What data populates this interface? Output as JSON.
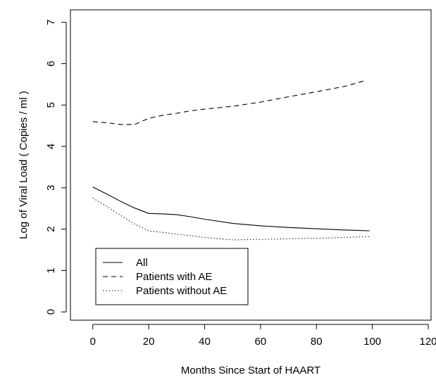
{
  "chart_data": {
    "type": "line",
    "title": "",
    "xlabel": "Months Since Start of HAART",
    "ylabel": "Log of Viral Load ( Copies / ml )",
    "xlim": [
      -8,
      121
    ],
    "ylim": [
      -0.2,
      7.3
    ],
    "xticks": [
      0,
      20,
      40,
      60,
      80,
      100,
      120
    ],
    "yticks": [
      0,
      1,
      2,
      3,
      4,
      5,
      6,
      7
    ],
    "grid": false,
    "legend_position": "bottom-left",
    "series": [
      {
        "name": "All",
        "linestyle": "solid",
        "color": "#000000",
        "x": [
          0,
          5,
          10,
          15,
          20,
          25,
          30,
          35,
          40,
          50,
          60,
          70,
          80,
          90,
          99
        ],
        "y": [
          3.02,
          2.85,
          2.67,
          2.51,
          2.38,
          2.37,
          2.35,
          2.3,
          2.24,
          2.14,
          2.08,
          2.04,
          2.01,
          1.98,
          1.96
        ]
      },
      {
        "name": "Patients with AE",
        "linestyle": "dashed",
        "color": "#000000",
        "x": [
          0,
          5,
          10,
          15,
          20,
          25,
          30,
          35,
          40,
          50,
          60,
          70,
          80,
          90,
          97
        ],
        "y": [
          4.6,
          4.57,
          4.53,
          4.53,
          4.68,
          4.75,
          4.8,
          4.86,
          4.9,
          4.97,
          5.07,
          5.2,
          5.32,
          5.45,
          5.58
        ]
      },
      {
        "name": "Patients without AE",
        "linestyle": "dotted",
        "color": "#000000",
        "x": [
          0,
          5,
          10,
          15,
          20,
          25,
          30,
          40,
          50,
          60,
          70,
          80,
          90,
          99
        ],
        "y": [
          2.75,
          2.55,
          2.33,
          2.12,
          1.96,
          1.92,
          1.88,
          1.8,
          1.74,
          1.75,
          1.77,
          1.78,
          1.8,
          1.82
        ]
      }
    ]
  }
}
